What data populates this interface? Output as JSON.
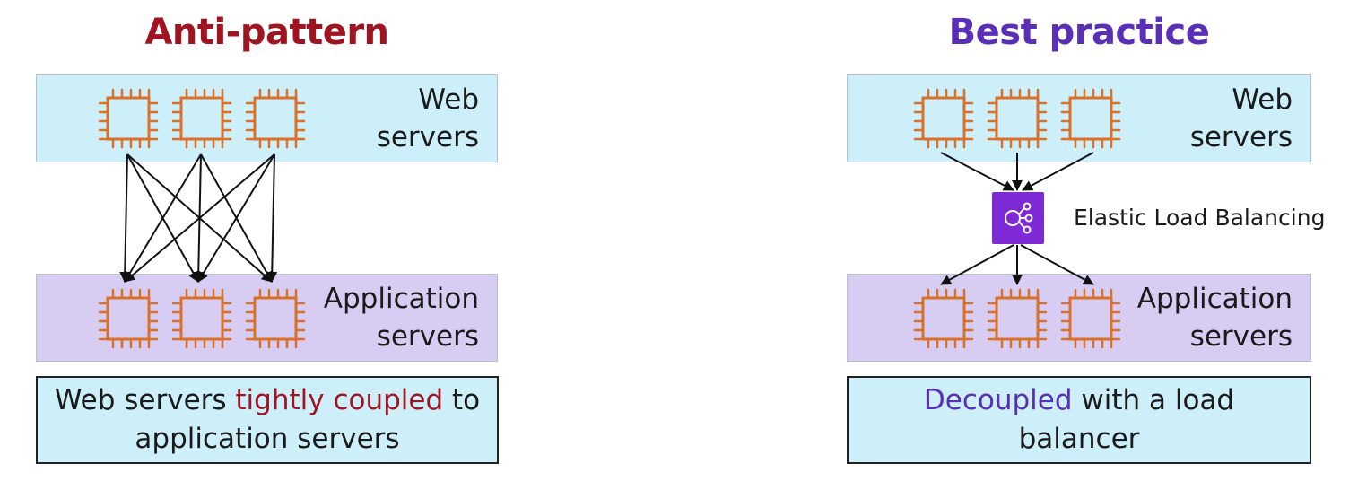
{
  "colors": {
    "anti": "#a01422",
    "best": "#5a2fb8",
    "chip": "#d9712a",
    "elb": "#7d2ad6"
  },
  "left": {
    "title": "Anti-pattern",
    "web_band": {
      "line1": "Web",
      "line2": "servers",
      "icon": "ec2-instance-icon"
    },
    "app_band": {
      "line1": "Application",
      "line2": "servers",
      "icon": "ec2-instance-icon"
    },
    "caption": {
      "part1": "Web servers ",
      "highlight": "tightly coupled",
      "part2": " to",
      "part3": "application servers"
    }
  },
  "right": {
    "title": "Best practice",
    "web_band": {
      "line1": "Web",
      "line2": "servers",
      "icon": "ec2-instance-icon"
    },
    "load_balancer": {
      "label": "Elastic Load Balancing",
      "icon": "elastic-load-balancing-icon"
    },
    "app_band": {
      "line1": "Application",
      "line2": "servers",
      "icon": "ec2-instance-icon"
    },
    "caption": {
      "highlight": "Decoupled",
      "part1": " with a load",
      "part2": "balancer"
    }
  }
}
